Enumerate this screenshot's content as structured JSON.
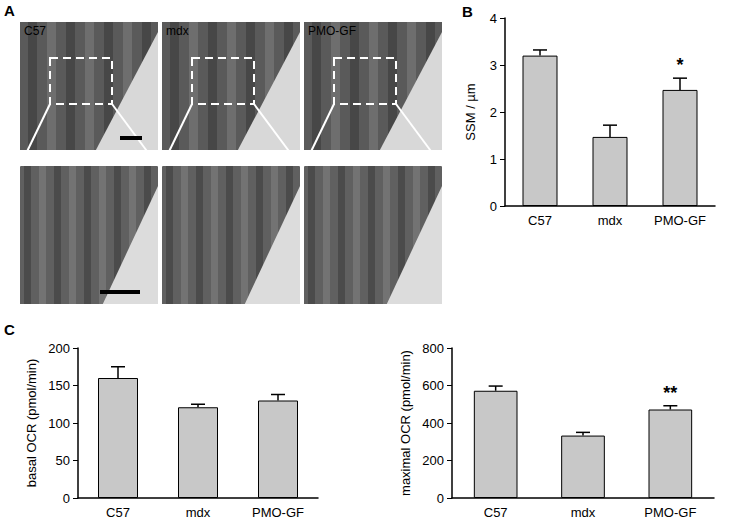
{
  "panel_a": {
    "panel": "A",
    "columns": [
      "C57",
      "mdx",
      "PMO-GF"
    ]
  },
  "chart_data": [
    {
      "type": "bar",
      "panel": "B",
      "y_label": "SSM / µm",
      "categories": [
        "C57",
        "mdx",
        "PMO-GF"
      ],
      "values": [
        3.2,
        1.47,
        2.47
      ],
      "errors": [
        0.12,
        0.25,
        0.25
      ],
      "color": "#c8c8c8",
      "ylim": [
        0,
        4
      ],
      "yticks": [
        0,
        1,
        2,
        3,
        4
      ],
      "grid": false,
      "annotations": [
        {
          "category": "PMO-GF",
          "text": "*"
        }
      ]
    },
    {
      "type": "bar",
      "panel": "C",
      "y_label": "basal OCR (pmol/min)",
      "categories": [
        "C57",
        "mdx",
        "PMO-GF"
      ],
      "values": [
        160,
        121,
        130
      ],
      "errors": [
        15,
        4,
        8
      ],
      "color": "#c8c8c8",
      "ylim": [
        0,
        200
      ],
      "yticks": [
        0,
        50,
        100,
        150,
        200
      ],
      "grid": false,
      "annotations": []
    },
    {
      "type": "bar",
      "y_label": "maximal OCR (pmol/min)",
      "categories": [
        "C57",
        "mdx",
        "PMO-GF"
      ],
      "values": [
        572,
        333,
        472
      ],
      "errors": [
        25,
        17,
        20
      ],
      "color": "#c8c8c8",
      "ylim": [
        0,
        800
      ],
      "yticks": [
        0,
        200,
        400,
        600,
        800
      ],
      "grid": false,
      "annotations": [
        {
          "category": "PMO-GF",
          "text": "**"
        }
      ]
    }
  ]
}
